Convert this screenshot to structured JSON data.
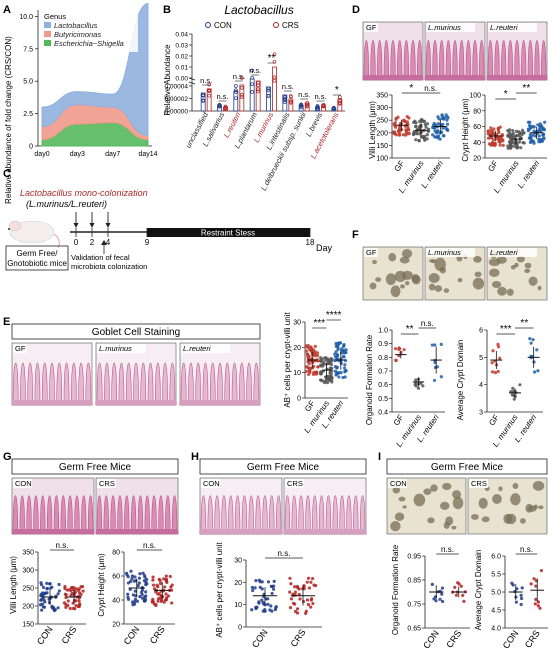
{
  "panels": {
    "A": {
      "letter": "A"
    },
    "B": {
      "letter": "B"
    },
    "C": {
      "letter": "C"
    },
    "D": {
      "letter": "D"
    },
    "E": {
      "letter": "E"
    },
    "F": {
      "letter": "F"
    },
    "G": {
      "letter": "G"
    },
    "H": {
      "letter": "H"
    },
    "I": {
      "letter": "I"
    }
  },
  "colors": {
    "con": "#1f3a8a",
    "crs": "#b22222",
    "gf": "#c0392b",
    "murinus": "#555555",
    "reuteri": "#1f5fa8",
    "lacto": "#8fb0dd",
    "butyri": "#f0998a",
    "escher": "#55b85a",
    "tissue": "#d98bb4",
    "organoid": "#e8e2d0"
  },
  "chart_data": [
    {
      "id": "A",
      "type": "area",
      "ylabel": "Relative abundance of fold change (CRS/CON)",
      "legend_title": "Genus",
      "categories": [
        "day0",
        "day3",
        "day7",
        "day14"
      ],
      "yticks": [
        "0",
        "2.5",
        "5.0",
        "7.5",
        "10.0"
      ],
      "ylim": [
        0,
        10.5
      ],
      "series": [
        {
          "name": "Lactobacillus",
          "values": [
            1.5,
            1.0,
            1.0,
            10.2
          ]
        },
        {
          "name": "Butyricimonas",
          "values": [
            1.0,
            1.5,
            1.2,
            0.3
          ]
        },
        {
          "name": "Escherichia−Shigella",
          "values": [
            0.5,
            1.7,
            1.8,
            0.5
          ]
        }
      ]
    },
    {
      "id": "B",
      "type": "bar",
      "title": "Lactobacillus",
      "ylabel": "Relative Abundance",
      "legend": [
        "CON",
        "CRS"
      ],
      "yticks_top": [
        "0.00",
        "0.01",
        "0.02",
        "0.03",
        "0.04"
      ],
      "yticks_bottom": [
        "0.00000",
        "0.00002",
        "0.00004"
      ],
      "categories": [
        "unclassified",
        "L.salivarius",
        "L.reuteri",
        "L.plantarum",
        "L.murinus",
        "L.intestinalis",
        "L.delbrueckii subsp. sunkii",
        "L.brevis",
        "L.acetotolerans"
      ],
      "highlight": [
        "L.reuteri",
        "L.murinus",
        "L.acetotolerans"
      ],
      "significance": [
        "n.s.",
        "n.s.",
        "n.s.",
        "n.s.",
        "**",
        "n.s.",
        "n.s.",
        "n.s.",
        "*"
      ]
    },
    {
      "id": "D",
      "type": "scatter",
      "ylabel_left": "Villi Length (μm)",
      "ylabel_right": "Crypt Height (μm)",
      "categories": [
        "GF",
        "L. murinus",
        "L. reuteri"
      ],
      "yticks_left": [
        "100",
        "150",
        "200",
        "250",
        "300",
        "350"
      ],
      "yticks_right": [
        "20",
        "40",
        "60",
        "80",
        "100"
      ],
      "significance_left": [
        "*",
        "n.s."
      ],
      "significance_right": [
        "*",
        "**"
      ]
    },
    {
      "id": "E",
      "type": "scatter",
      "ylabel": "AB⁺ cells per crypt-villi unit",
      "categories": [
        "GF",
        "L. murinus",
        "L. reuteri"
      ],
      "yticks": [
        "0",
        "10",
        "20",
        "30"
      ],
      "significance": [
        "***",
        "****"
      ]
    },
    {
      "id": "F",
      "type": "scatter",
      "ylabel_left": "Organoid Formation Rate",
      "ylabel_right": "Average Crypt Domain",
      "categories": [
        "GF",
        "L. murinus",
        "L. reuteri"
      ],
      "yticks_left": [
        "0.4",
        "0.5",
        "0.6",
        "0.7",
        "0.8",
        "0.9",
        "1.0"
      ],
      "yticks_right": [
        "3",
        "4",
        "5",
        "6"
      ],
      "significance_left": [
        "**",
        "n.s."
      ],
      "significance_right": [
        "***",
        "**"
      ]
    },
    {
      "id": "G",
      "type": "scatter",
      "ylabel_left": "Villi Length (μm)",
      "ylabel_right": "Crypt Height (μm)",
      "categories": [
        "CON",
        "CRS"
      ],
      "yticks_left": [
        "150",
        "200",
        "250",
        "300",
        "350"
      ],
      "yticks_right": [
        "20",
        "40",
        "60",
        "80"
      ],
      "significance": [
        "n.s.",
        "n.s."
      ]
    },
    {
      "id": "H",
      "type": "scatter",
      "ylabel": "AB⁺ cells per crypt-villi unit",
      "categories": [
        "CON",
        "CRS"
      ],
      "yticks": [
        "0",
        "10",
        "20",
        "30"
      ],
      "significance": [
        "n.s."
      ]
    },
    {
      "id": "I",
      "type": "scatter",
      "ylabel_left": "Organoid Formation Rate",
      "ylabel_right": "Average Crypt Domain",
      "categories": [
        "CON",
        "CRS"
      ],
      "yticks_left": [
        "0.65",
        "0.75",
        "0.85",
        "0.95"
      ],
      "yticks_right": [
        "4.0",
        "4.5",
        "5.0",
        "5.5",
        "6.0"
      ],
      "significance": [
        "n.s.",
        "n.s."
      ]
    }
  ],
  "C": {
    "title": "Lactobacillus mono-colonization",
    "subtitle": "(L.murinus/L.reuteri)",
    "ticks": [
      "0",
      "2",
      "4",
      "9",
      "18"
    ],
    "bar_label": "Restraint Stess",
    "axis_label": "Day",
    "box_line1": "Germ Free/",
    "box_line2": "Gnotobiotic mice",
    "validation_line1": "Validation of fecal",
    "validation_line2": "microbiota colonization"
  },
  "images": {
    "D": [
      "GF",
      "L.murinus",
      "L.reuteri"
    ],
    "E_title": "Goblet Cell Staining",
    "E": [
      "GF",
      "L.murinus",
      "L.reuteri"
    ],
    "F": [
      "GF",
      "L.murinus",
      "L.reuteri"
    ],
    "G_title": "Germ Free Mice",
    "G": [
      "CON",
      "CRS"
    ],
    "H_title": "Germ Free Mice",
    "H": [
      "CON",
      "CRS"
    ],
    "I_title": "Germ Free Mice",
    "I": [
      "CON",
      "CRS"
    ]
  }
}
